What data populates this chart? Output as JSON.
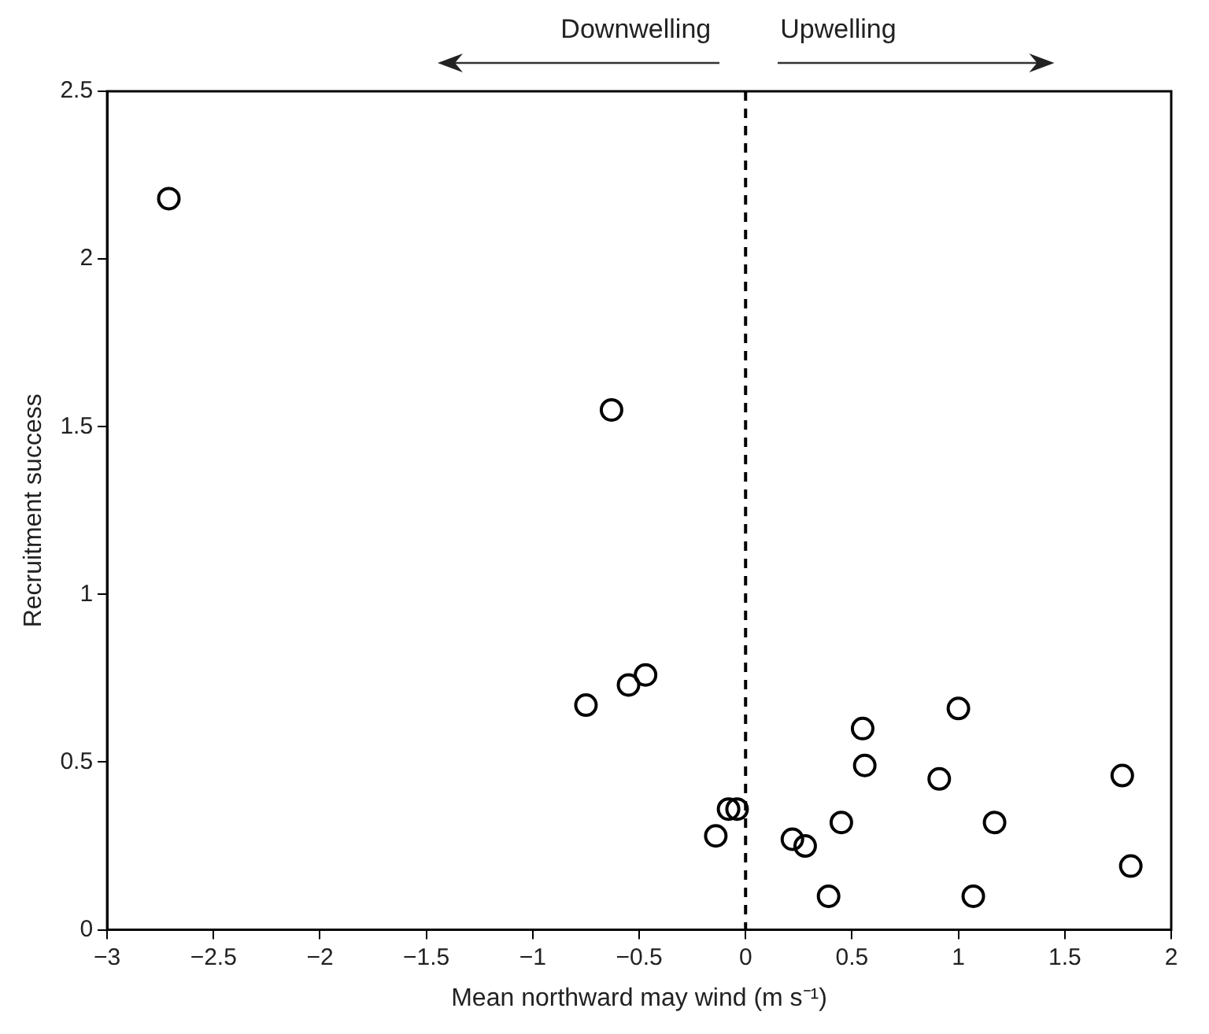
{
  "chart_data": {
    "type": "scatter",
    "xlabel": "Mean northward may wind (m s⁻¹)",
    "ylabel": "Recruitment success",
    "annotations": [
      "Downwelling",
      "Upwelling"
    ],
    "series": [
      {
        "color": "#000000",
        "x": [
          -2.71,
          -0.63,
          -0.75,
          -0.55,
          -0.47,
          -0.14,
          -0.08,
          -0.04,
          0.22,
          0.28,
          0.39,
          0.45,
          0.55,
          0.56,
          0.91,
          1.0,
          1.07,
          1.17,
          1.77,
          1.81
        ],
        "values": [
          2.18,
          1.55,
          0.67,
          0.73,
          0.76,
          0.28,
          0.36,
          0.36,
          0.27,
          0.25,
          0.1,
          0.32,
          0.6,
          0.49,
          0.45,
          0.66,
          0.1,
          0.32,
          0.46,
          0.19
        ]
      }
    ],
    "xlim": [
      -3,
      2
    ],
    "xticks": [
      -3,
      -2.5,
      -2,
      -1.5,
      -1,
      -0.5,
      0,
      0.5,
      1,
      1.5,
      2
    ],
    "ylim": [
      0,
      2.5
    ],
    "yticks": [
      0,
      0.5,
      1,
      1.5,
      2,
      2.5
    ],
    "ref_lines": [
      {
        "axis": "x",
        "value": 0,
        "line_style": "dashed",
        "color": "#000000"
      }
    ],
    "grid": false,
    "legend": false,
    "marker": "circle"
  }
}
